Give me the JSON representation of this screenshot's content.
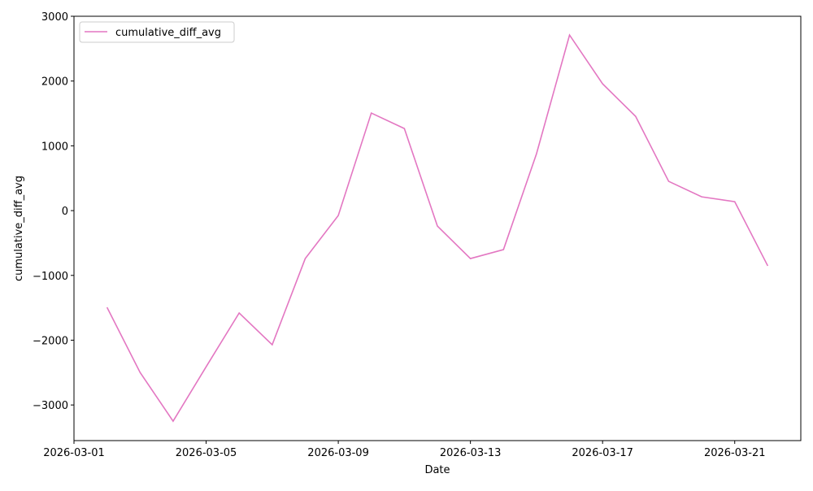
{
  "chart_data": {
    "type": "line",
    "title": "",
    "xlabel": "Date",
    "ylabel": "cumulative_diff_avg",
    "xlim": [
      "2026-03-01",
      "2026-03-23"
    ],
    "ylim": [
      -3550,
      3000
    ],
    "x_ticks": [
      "2026-03-01",
      "2026-03-05",
      "2026-03-09",
      "2026-03-13",
      "2026-03-17",
      "2026-03-21"
    ],
    "y_ticks": [
      3000,
      2000,
      1000,
      0,
      -1000,
      -2000,
      -3000
    ],
    "y_tick_labels": [
      "3000",
      "2000",
      "1000",
      "0",
      "−1000",
      "−2000",
      "−3000"
    ],
    "grid": false,
    "legend_position": "top-left",
    "series": [
      {
        "name": "cumulative_diff_avg",
        "color": "#e377c2",
        "x": [
          "2026-03-02",
          "2026-03-03",
          "2026-03-04",
          "2026-03-05",
          "2026-03-06",
          "2026-03-07",
          "2026-03-08",
          "2026-03-09",
          "2026-03-10",
          "2026-03-11",
          "2026-03-12",
          "2026-03-13",
          "2026-03-14",
          "2026-03-15",
          "2026-03-16",
          "2026-03-17",
          "2026-03-18",
          "2026-03-19",
          "2026-03-20",
          "2026-03-21",
          "2026-03-22"
        ],
        "y": [
          -1493,
          -2497,
          -3250,
          -2410,
          -1580,
          -2070,
          -740,
          -75,
          1506,
          1267,
          -238,
          -740,
          -602,
          878,
          2710,
          1957,
          1455,
          452,
          213,
          138,
          -853
        ]
      }
    ]
  }
}
